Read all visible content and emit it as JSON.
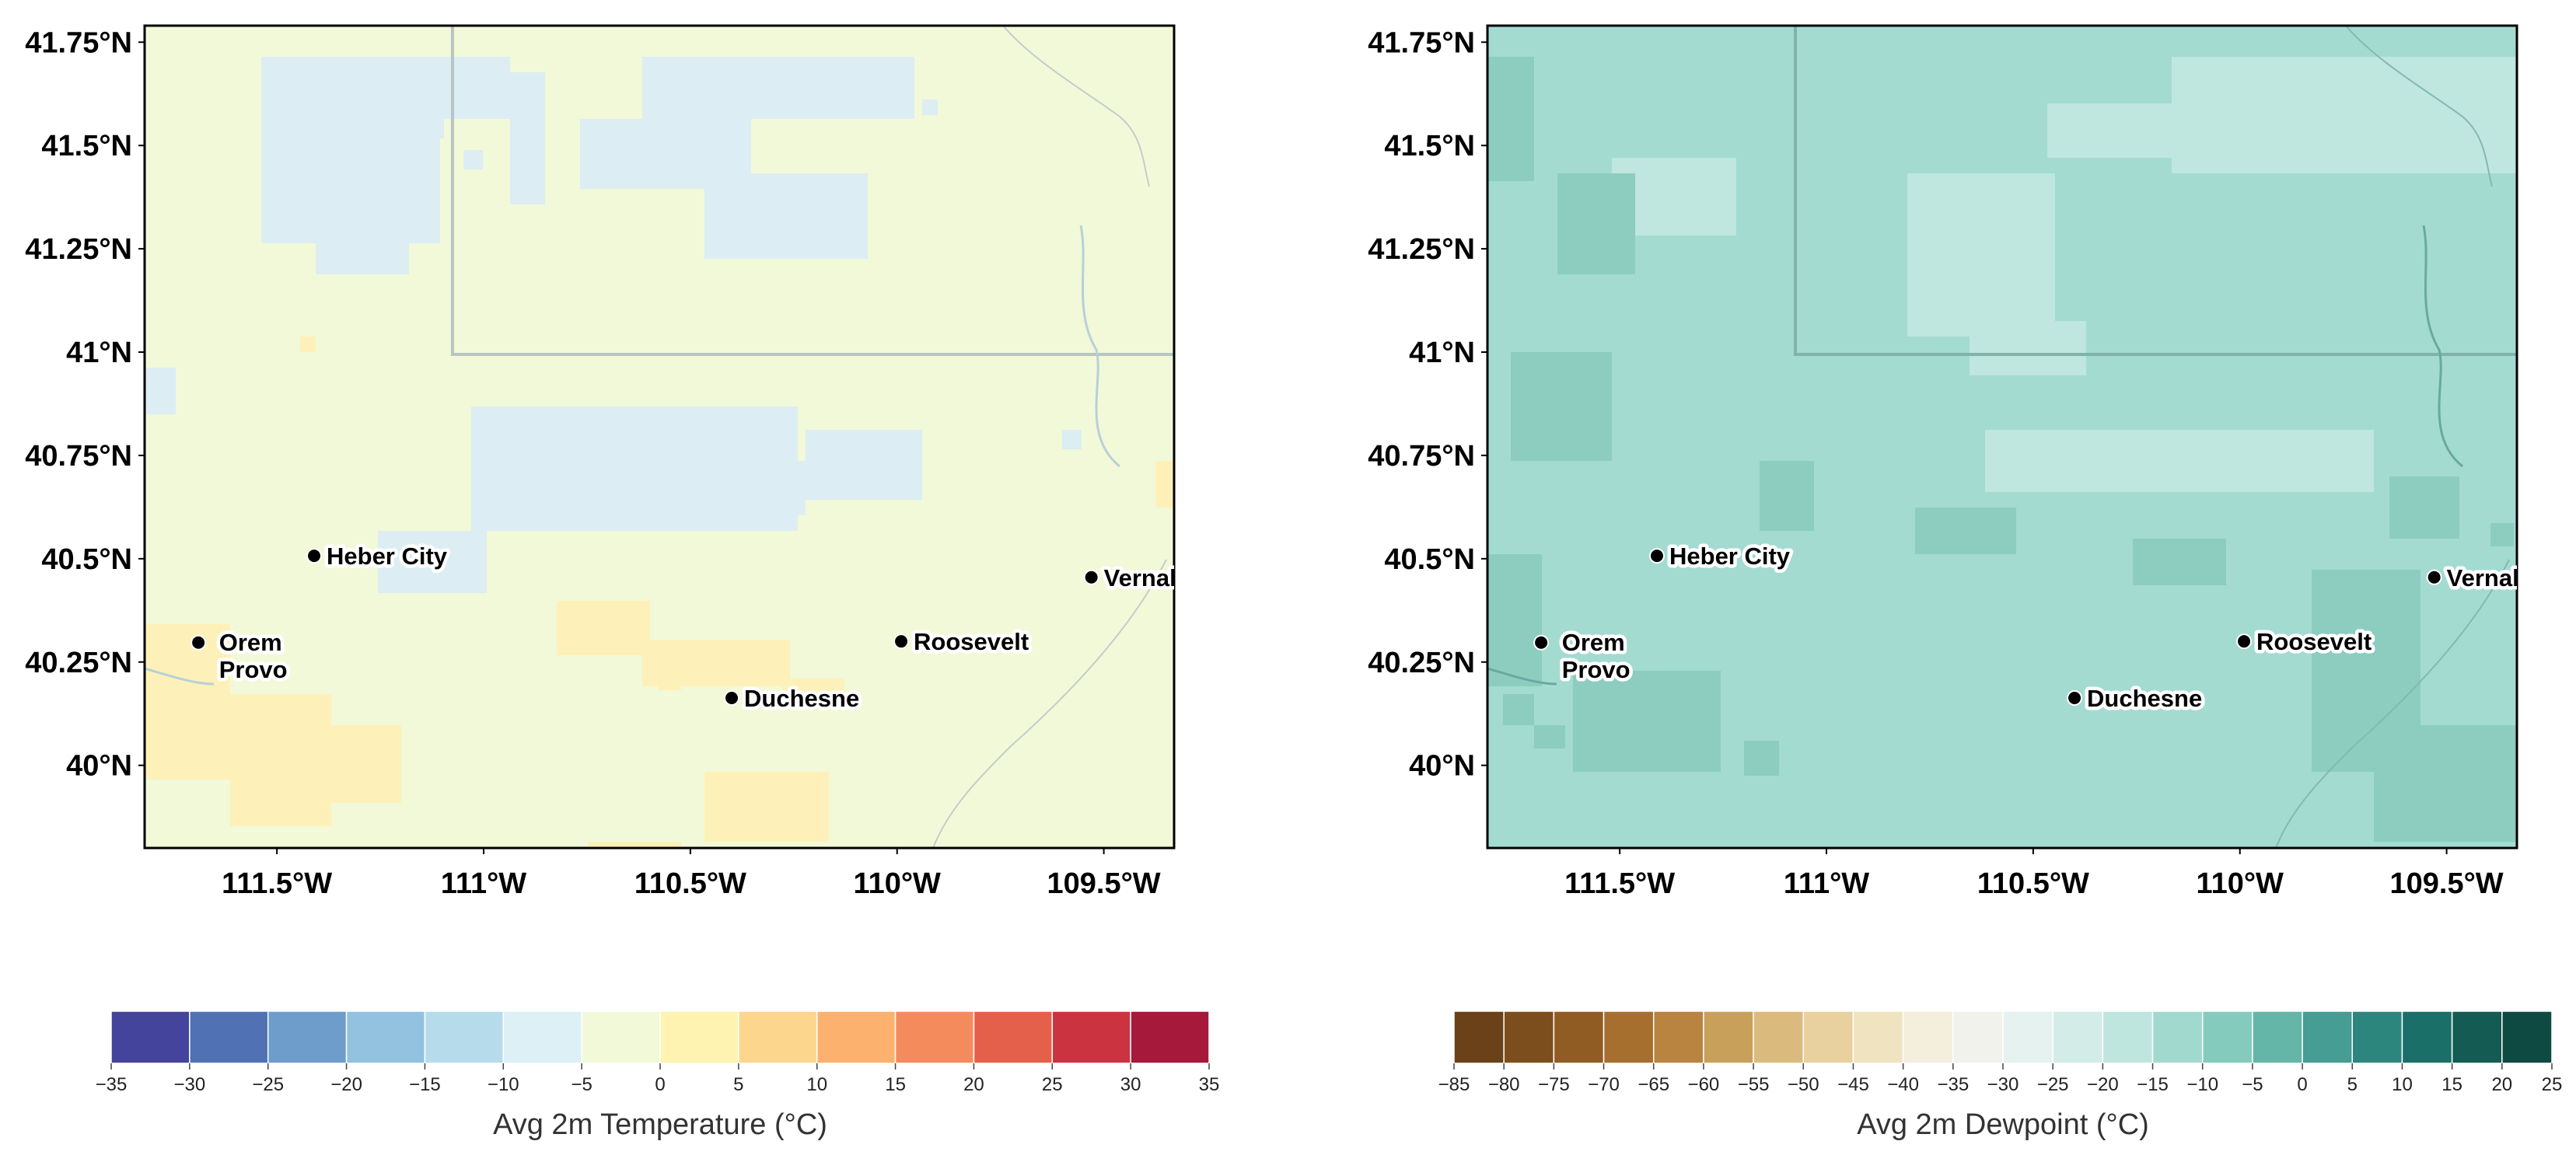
{
  "panels": [
    {
      "id": "temperature",
      "lat_ticks": [
        "41.75°N",
        "41.5°N",
        "41.25°N",
        "41°N",
        "40.75°N",
        "40.5°N",
        "40.25°N",
        "40°N"
      ],
      "lon_ticks": [
        "111.5°W",
        "111°W",
        "110.5°W",
        "110°W",
        "109.5°W"
      ],
      "base_color": "#f2f9d8",
      "patch_colors": [
        "#dcedf4",
        "#fdf1b9"
      ],
      "colorbar": {
        "label": "Avg 2m Temperature (°C)",
        "ticks": [
          "−35",
          "−30",
          "−25",
          "−20",
          "−15",
          "−10",
          "−5",
          "0",
          "5",
          "10",
          "15",
          "20",
          "25",
          "30",
          "35"
        ],
        "colors": [
          "#44449c",
          "#5072b5",
          "#6e9ccb",
          "#92c2df",
          "#b6dcec",
          "#dcf0f6",
          "#f2f9d8",
          "#fef3b1",
          "#fdd68e",
          "#fcb16e",
          "#f48b5c",
          "#e5604a",
          "#cc3340",
          "#a6193b"
        ]
      }
    },
    {
      "id": "dewpoint",
      "lat_ticks": [
        "41.75°N",
        "41.5°N",
        "41.25°N",
        "41°N",
        "40.75°N",
        "40.5°N",
        "40.25°N",
        "40°N"
      ],
      "lon_ticks": [
        "111.5°W",
        "111°W",
        "110.5°W",
        "110°W",
        "109.5°W"
      ],
      "base_color": "#a3dbd1",
      "patch_colors": [
        "#bfe6df",
        "#8ccdc0"
      ],
      "colorbar": {
        "label": "Avg 2m Dewpoint (°C)",
        "ticks": [
          "−85",
          "−80",
          "−75",
          "−70",
          "−65",
          "−60",
          "−55",
          "−50",
          "−45",
          "−40",
          "−35",
          "−30",
          "−25",
          "−20",
          "−15",
          "−10",
          "−5",
          "0",
          "5",
          "10",
          "15",
          "20",
          "25"
        ],
        "colors": [
          "#6a4118",
          "#7d4e1d",
          "#915c24",
          "#a66f2e",
          "#b98340",
          "#c9a05a",
          "#dbbb7d",
          "#e8d19f",
          "#f0e3c0",
          "#f4eedd",
          "#f2f2ec",
          "#e6f2f0",
          "#d3ece8",
          "#bee6df",
          "#a2d9cf",
          "#84cbbe",
          "#63b6a8",
          "#459d93",
          "#2d867d",
          "#1a7068",
          "#135b53",
          "#0f4a42"
        ]
      }
    }
  ],
  "cities": [
    {
      "name": "Heber City",
      "lon": -111.41,
      "lat": 40.507
    },
    {
      "name": "Orem",
      "lon": -111.69,
      "lat": 40.297
    },
    {
      "name": "Provo",
      "lon": -111.66,
      "lat": 40.234
    },
    {
      "name": "Duchesne",
      "lon": -110.4,
      "lat": 40.163
    },
    {
      "name": "Roosevelt",
      "lon": -109.99,
      "lat": 40.3
    },
    {
      "name": "Vernal",
      "lon": -109.53,
      "lat": 40.455
    }
  ],
  "map_extent": {
    "lon_min": -111.82,
    "lon_max": -109.33,
    "lat_min": 39.8,
    "lat_max": 41.79
  }
}
